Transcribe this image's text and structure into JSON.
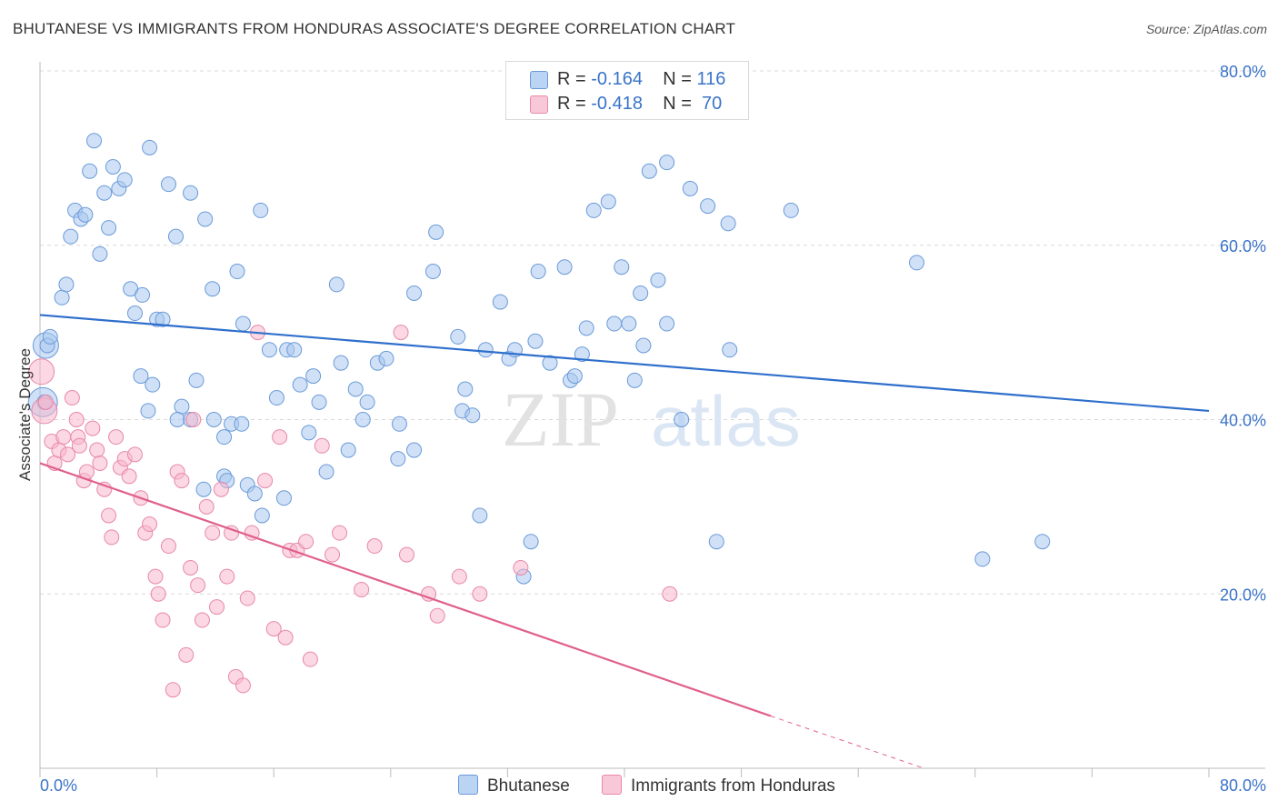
{
  "title": "BHUTANESE VS IMMIGRANTS FROM HONDURAS ASSOCIATE'S DEGREE CORRELATION CHART",
  "source": "Source: ZipAtlas.com",
  "watermark": {
    "zip": "ZIP",
    "atlas": "atlas"
  },
  "legend": [
    {
      "r_label": "R =",
      "r_value": "-0.164",
      "n_label": "N =",
      "n_value": "116"
    },
    {
      "r_label": "R =",
      "r_value": "-0.418",
      "n_label": "N =",
      "n_value": "70"
    }
  ],
  "colors": {
    "blue_fill": "#aac8f0",
    "blue_stroke": "#6a9ad8",
    "blue_line": "#2f6fcc",
    "pink_fill": "#f7b8cc",
    "pink_stroke": "#e888aa",
    "pink_line": "#e0608c",
    "axis_label": "#3a73c8",
    "grid": "#d8d8d8"
  },
  "chart_data": {
    "type": "scatter",
    "xlabel": "",
    "ylabel": "Associate's Degree",
    "xlim": [
      0,
      80
    ],
    "ylim": [
      0,
      80
    ],
    "x_tick_labels": [
      "0.0%",
      "80.0%"
    ],
    "y_tick_labels": [
      "20.0%",
      "40.0%",
      "60.0%",
      "80.0%"
    ],
    "y_ticks": [
      20,
      40,
      60,
      80
    ],
    "series": [
      {
        "name": "Bhutanese",
        "color": "blue",
        "trend": {
          "x": [
            0,
            80
          ],
          "y": [
            52.0,
            41.0
          ]
        },
        "points": [
          [
            0.5,
            48.5
          ],
          [
            0.7,
            49.5
          ],
          [
            0.3,
            42
          ],
          [
            1.5,
            54
          ],
          [
            1.8,
            55.5
          ],
          [
            2.1,
            61
          ],
          [
            2.4,
            64
          ],
          [
            2.8,
            63
          ],
          [
            3.1,
            63.5
          ],
          [
            3.4,
            68.5
          ],
          [
            3.7,
            72
          ],
          [
            4.1,
            59
          ],
          [
            4.4,
            66
          ],
          [
            4.7,
            62
          ],
          [
            5.0,
            69
          ],
          [
            5.4,
            66.5
          ],
          [
            5.8,
            67.5
          ],
          [
            6.2,
            55
          ],
          [
            6.5,
            52.2
          ],
          [
            7.0,
            54.3
          ],
          [
            7.5,
            71.2
          ],
          [
            8.0,
            51.5
          ],
          [
            8.4,
            51.5
          ],
          [
            8.8,
            67
          ],
          [
            9.3,
            61
          ],
          [
            10.3,
            66
          ],
          [
            11.3,
            63
          ],
          [
            9.7,
            41.5
          ],
          [
            11.8,
            55
          ],
          [
            13.5,
            57
          ],
          [
            15.1,
            64
          ],
          [
            7.7,
            44
          ],
          [
            6.9,
            45
          ],
          [
            10.7,
            44.5
          ],
          [
            7.4,
            41
          ],
          [
            9.4,
            40
          ],
          [
            10.3,
            40
          ],
          [
            11.9,
            40
          ],
          [
            12.6,
            38
          ],
          [
            13.1,
            39.5
          ],
          [
            13.8,
            39.5
          ],
          [
            12.6,
            33.5
          ],
          [
            12.8,
            33
          ],
          [
            11.2,
            32
          ],
          [
            14.2,
            32.5
          ],
          [
            14.7,
            31.5
          ],
          [
            15.2,
            29
          ],
          [
            16.7,
            31
          ],
          [
            13.9,
            51
          ],
          [
            15.7,
            48
          ],
          [
            16.2,
            42.5
          ],
          [
            16.9,
            48
          ],
          [
            17.4,
            48
          ],
          [
            17.8,
            44
          ],
          [
            18.4,
            38.5
          ],
          [
            18.7,
            45
          ],
          [
            19.1,
            42
          ],
          [
            19.6,
            34
          ],
          [
            20.3,
            55.5
          ],
          [
            20.6,
            46.5
          ],
          [
            21.1,
            36.5
          ],
          [
            21.6,
            43.5
          ],
          [
            22.1,
            40
          ],
          [
            22.4,
            42
          ],
          [
            23.1,
            46.5
          ],
          [
            23.7,
            47
          ],
          [
            24.5,
            35.5
          ],
          [
            24.6,
            39.5
          ],
          [
            25.6,
            36.5
          ],
          [
            25.6,
            54.5
          ],
          [
            26.9,
            57
          ],
          [
            27.1,
            61.5
          ],
          [
            28.6,
            49.5
          ],
          [
            28.9,
            41
          ],
          [
            29.1,
            43.5
          ],
          [
            29.6,
            40.5
          ],
          [
            30.1,
            29
          ],
          [
            30.5,
            48
          ],
          [
            31.5,
            53.5
          ],
          [
            32.1,
            47
          ],
          [
            32.5,
            48
          ],
          [
            33.1,
            22
          ],
          [
            33.6,
            26
          ],
          [
            33.9,
            49
          ],
          [
            34.1,
            57
          ],
          [
            34.9,
            46.5
          ],
          [
            35.9,
            57.5
          ],
          [
            36.3,
            44.5
          ],
          [
            36.6,
            45
          ],
          [
            37.1,
            47.5
          ],
          [
            37.4,
            50.5
          ],
          [
            37.9,
            64
          ],
          [
            38.9,
            65
          ],
          [
            39.3,
            51
          ],
          [
            39.8,
            57.5
          ],
          [
            40.3,
            51
          ],
          [
            40.7,
            44.5
          ],
          [
            41.1,
            54.5
          ],
          [
            41.3,
            48.5
          ],
          [
            41.7,
            68.5
          ],
          [
            42.3,
            56
          ],
          [
            42.9,
            51
          ],
          [
            42.9,
            69.5
          ],
          [
            43.9,
            40
          ],
          [
            44.5,
            66.5
          ],
          [
            45.7,
            64.5
          ],
          [
            46.3,
            26
          ],
          [
            47.2,
            48
          ],
          [
            47.1,
            62.5
          ],
          [
            51.4,
            64
          ],
          [
            60.0,
            58
          ],
          [
            64.5,
            24
          ],
          [
            68.6,
            26
          ]
        ],
        "big_points": [
          [
            0.4,
            48.5,
            14
          ],
          [
            0.2,
            42,
            16
          ]
        ]
      },
      {
        "name": "Immigrants from Honduras",
        "color": "pink",
        "trend": {
          "x": [
            0,
            50
          ],
          "y": [
            35.0,
            6.0
          ]
        },
        "trend_ext": {
          "x": [
            50,
            60.5
          ],
          "y": [
            6.0,
            0
          ]
        },
        "points": [
          [
            0.4,
            42
          ],
          [
            0.8,
            37.5
          ],
          [
            1.0,
            35
          ],
          [
            1.3,
            36.5
          ],
          [
            1.6,
            38
          ],
          [
            1.9,
            36
          ],
          [
            2.2,
            42.5
          ],
          [
            2.5,
            40
          ],
          [
            2.6,
            38
          ],
          [
            2.7,
            37
          ],
          [
            3.0,
            33
          ],
          [
            3.2,
            34
          ],
          [
            3.6,
            39
          ],
          [
            3.9,
            36.5
          ],
          [
            4.1,
            35
          ],
          [
            4.4,
            32
          ],
          [
            4.7,
            29
          ],
          [
            4.9,
            26.5
          ],
          [
            5.2,
            38
          ],
          [
            5.5,
            34.5
          ],
          [
            5.8,
            35.5
          ],
          [
            6.1,
            33.5
          ],
          [
            6.5,
            36
          ],
          [
            6.9,
            31
          ],
          [
            7.2,
            27
          ],
          [
            7.5,
            28
          ],
          [
            7.9,
            22
          ],
          [
            8.1,
            20
          ],
          [
            8.4,
            17
          ],
          [
            8.8,
            25.5
          ],
          [
            9.1,
            9
          ],
          [
            9.4,
            34
          ],
          [
            9.7,
            33
          ],
          [
            10.0,
            13
          ],
          [
            10.3,
            23
          ],
          [
            10.5,
            40
          ],
          [
            10.8,
            21
          ],
          [
            11.1,
            17
          ],
          [
            11.4,
            30
          ],
          [
            11.8,
            27
          ],
          [
            12.1,
            18.5
          ],
          [
            12.4,
            32
          ],
          [
            12.8,
            22
          ],
          [
            13.1,
            27
          ],
          [
            13.4,
            10.5
          ],
          [
            13.9,
            9.5
          ],
          [
            14.2,
            19.5
          ],
          [
            14.5,
            27
          ],
          [
            14.9,
            50
          ],
          [
            15.4,
            33
          ],
          [
            16.0,
            16
          ],
          [
            16.4,
            38
          ],
          [
            16.8,
            15
          ],
          [
            17.1,
            25
          ],
          [
            17.6,
            25
          ],
          [
            18.2,
            26
          ],
          [
            18.5,
            12.5
          ],
          [
            19.3,
            37
          ],
          [
            20.0,
            24.5
          ],
          [
            20.5,
            27
          ],
          [
            22.0,
            20.5
          ],
          [
            22.9,
            25.5
          ],
          [
            24.7,
            50
          ],
          [
            25.1,
            24.5
          ],
          [
            26.6,
            20
          ],
          [
            27.2,
            17.5
          ],
          [
            28.7,
            22
          ],
          [
            30.1,
            20
          ],
          [
            32.9,
            23
          ],
          [
            43.1,
            20
          ]
        ],
        "big_points": [
          [
            0.1,
            45.5,
            14
          ],
          [
            0.3,
            41,
            14
          ]
        ]
      }
    ]
  }
}
